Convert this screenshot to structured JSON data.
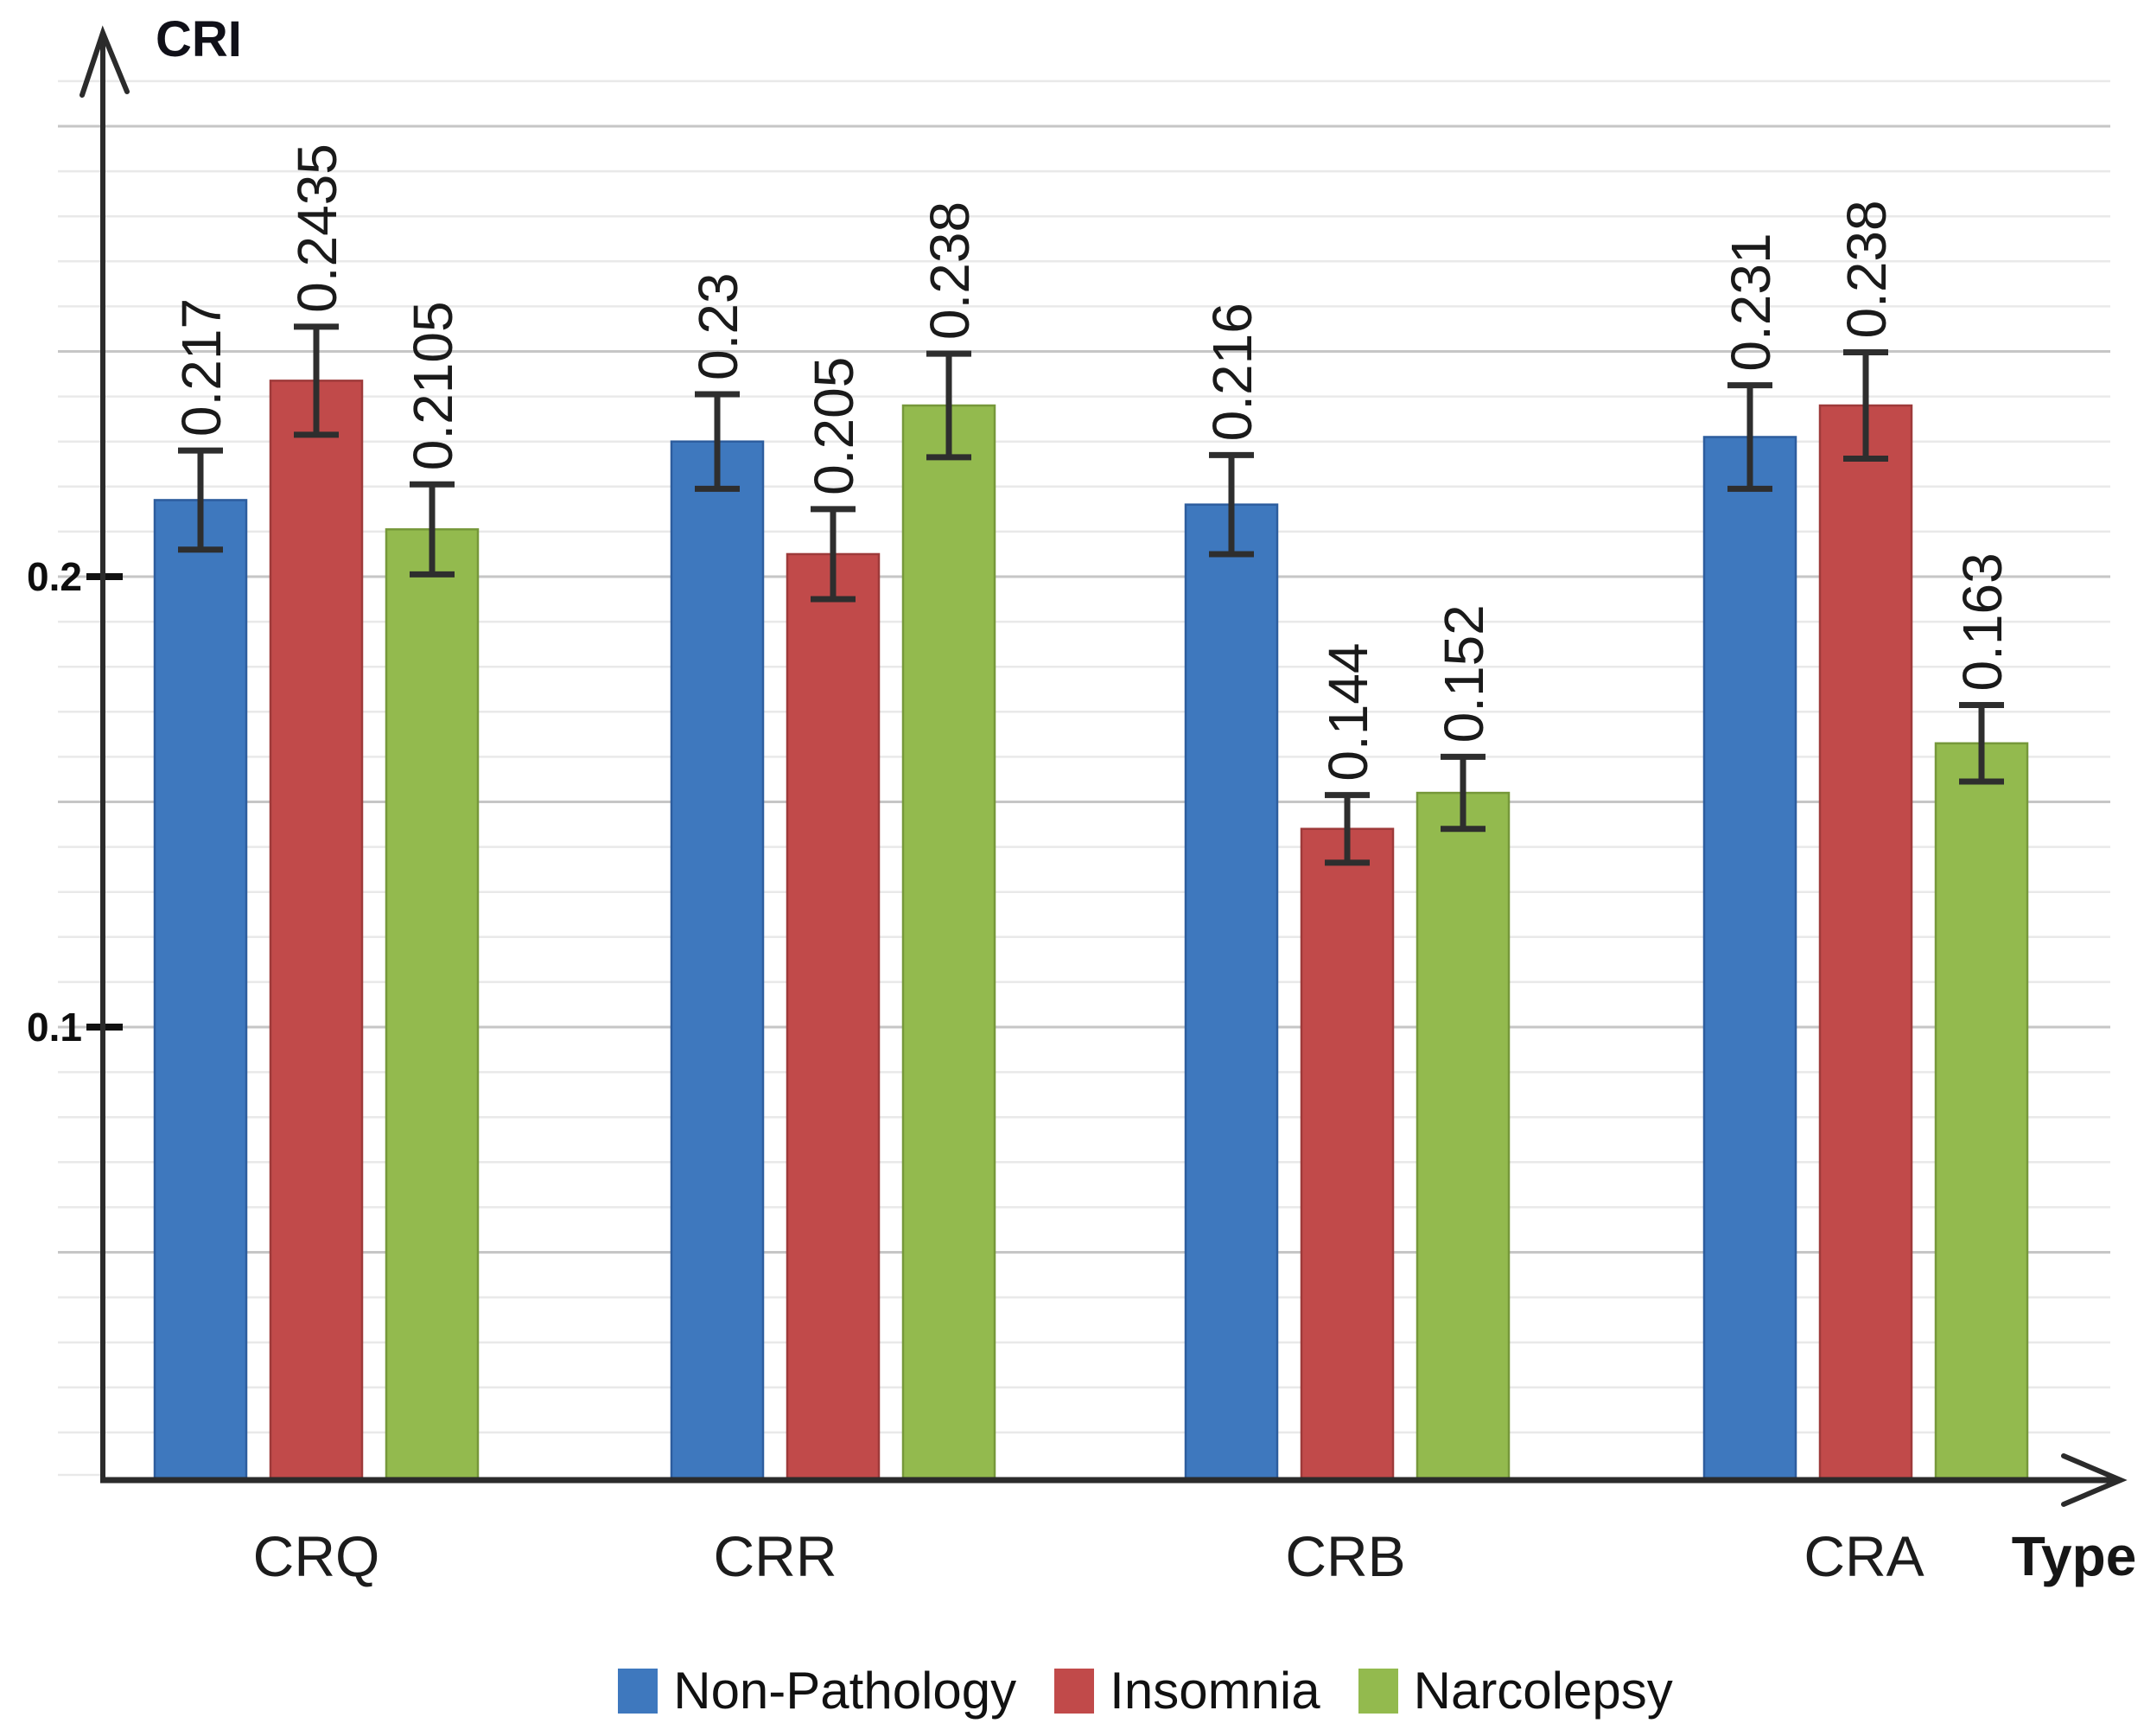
{
  "chart_data": {
    "type": "bar",
    "title": "",
    "ylabel": "CRI",
    "xlabel": "Type",
    "categories": [
      "CRQ",
      "CRR",
      "CRB",
      "CRA"
    ],
    "series": [
      {
        "name": "Non-Pathology",
        "color": "#3E78BE",
        "edge_color": "#2d5d9e",
        "values": [
          0.217,
          0.23,
          0.216,
          0.231
        ],
        "errors": [
          0.011,
          0.0105,
          0.011,
          0.0115
        ],
        "labels": [
          "0.217",
          "0.23",
          "0.216",
          "0.231"
        ]
      },
      {
        "name": "Insomnia",
        "color": "#C14A4A",
        "edge_color": "#9e3a3a",
        "values": [
          0.2435,
          0.205,
          0.144,
          0.238
        ],
        "errors": [
          0.012,
          0.01,
          0.0075,
          0.0118
        ],
        "labels": [
          "0.2435",
          "0.205",
          "0.144",
          "0.238"
        ]
      },
      {
        "name": "Narcolepsy",
        "color": "#93BA4E",
        "edge_color": "#76983a",
        "values": [
          0.2105,
          0.238,
          0.152,
          0.163
        ],
        "errors": [
          0.01,
          0.0115,
          0.008,
          0.0085
        ],
        "labels": [
          "0.2105",
          "0.238",
          "0.152",
          "0.163"
        ]
      }
    ],
    "ylim": [
      0,
      0.31
    ],
    "yticks": [
      {
        "value": 0.1,
        "label": "0.1"
      },
      {
        "value": 0.2,
        "label": "0.2"
      }
    ],
    "grid": {
      "on": true,
      "minor_step": 0.01,
      "major_step": 0.05
    },
    "legend_position": "bottom",
    "error_bars": true,
    "value_label_rotation": -90
  },
  "style_colors": {
    "axis": "#2b2b2b",
    "tick": "#111111",
    "error_bar": "#2e2e2e",
    "minor_grid": "#e9e9e9",
    "major_grid": "#c6c6c6",
    "value_label": "#1a1a1a"
  }
}
